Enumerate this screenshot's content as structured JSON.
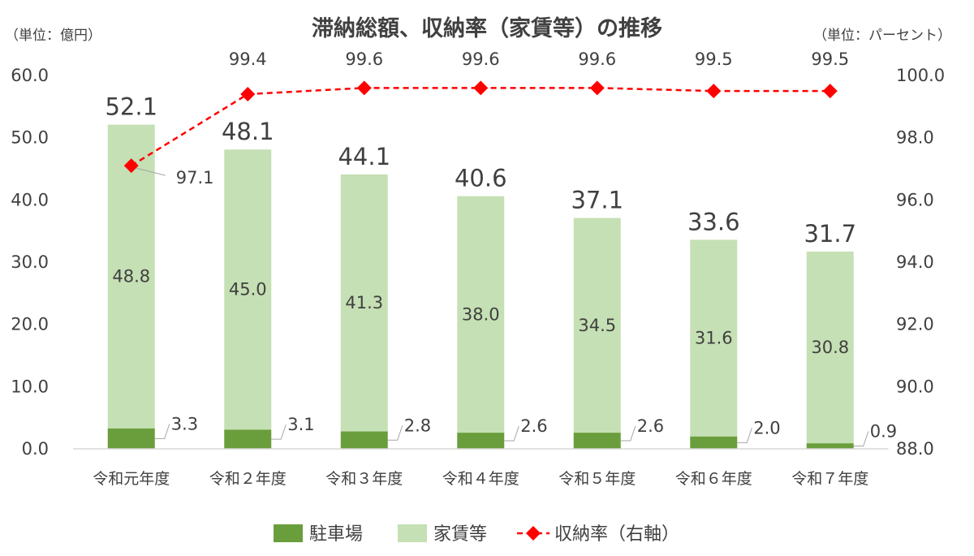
{
  "chart_data": {
    "type": "bar",
    "title": "滞納総額、収納率（家賃等）の推移",
    "left_unit": "（単位：億円）",
    "right_unit": "（単位：パーセント）",
    "categories": [
      "令和元年度",
      "令和２年度",
      "令和３年度",
      "令和４年度",
      "令和５年度",
      "令和６年度",
      "令和７年度"
    ],
    "series": [
      {
        "name": "駐車場",
        "type": "bar",
        "stacked": true,
        "axis": "left",
        "color": "#6a9e3c",
        "values": [
          3.3,
          3.1,
          2.8,
          2.6,
          2.6,
          2.0,
          0.9
        ],
        "labels": [
          "3.3",
          "3.1",
          "2.8",
          "2.6",
          "2.6",
          "2.0",
          "0.9"
        ]
      },
      {
        "name": "家賃等",
        "type": "bar",
        "stacked": true,
        "axis": "left",
        "color": "#c5e0b4",
        "values": [
          48.8,
          45.0,
          41.3,
          38.0,
          34.5,
          31.6,
          30.8
        ],
        "labels": [
          "48.8",
          "45.0",
          "41.3",
          "38.0",
          "34.5",
          "31.6",
          "30.8"
        ]
      },
      {
        "name": "収納率（右軸）",
        "type": "line",
        "axis": "right",
        "color": "#ff0000",
        "line_style": "dashed",
        "marker": "diamond",
        "values": [
          97.1,
          99.4,
          99.6,
          99.6,
          99.6,
          99.5,
          99.5
        ],
        "labels": [
          "97.1",
          "99.4",
          "99.6",
          "99.6",
          "99.6",
          "99.5",
          "99.5"
        ]
      }
    ],
    "totals": [
      "52.1",
      "48.1",
      "44.1",
      "40.6",
      "37.1",
      "33.6",
      "31.7"
    ],
    "y_left": {
      "range": [
        0,
        60
      ],
      "ticks": [
        "0.0",
        "10.0",
        "20.0",
        "30.0",
        "40.0",
        "50.0",
        "60.0"
      ]
    },
    "y_right": {
      "range": [
        88,
        100
      ],
      "ticks": [
        "88.0",
        "90.0",
        "92.0",
        "94.0",
        "96.0",
        "98.0",
        "100.0"
      ]
    },
    "grid": false,
    "legend_position": "bottom"
  }
}
